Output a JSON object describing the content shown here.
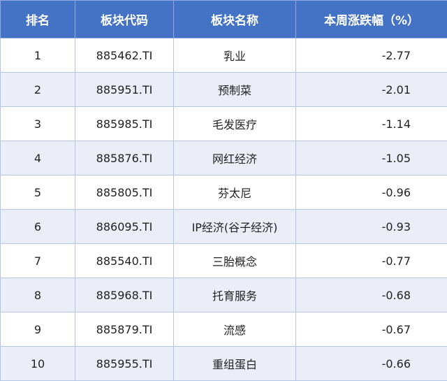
{
  "headers": [
    "排名",
    "板块代码",
    "板块名称",
    "本周涨跌幅（%）"
  ],
  "rows": [
    [
      "1",
      "885462.TI",
      "乳业",
      "-2.77"
    ],
    [
      "2",
      "885951.TI",
      "预制菜",
      "-2.01"
    ],
    [
      "3",
      "885985.TI",
      "毛发医疗",
      "-1.14"
    ],
    [
      "4",
      "885876.TI",
      "网红经济",
      "-1.05"
    ],
    [
      "5",
      "885805.TI",
      "芬太尼",
      "-0.96"
    ],
    [
      "6",
      "886095.TI",
      "IP经济(谷子经济)",
      "-0.93"
    ],
    [
      "7",
      "885540.TI",
      "三胎概念",
      "-0.77"
    ],
    [
      "8",
      "885968.TI",
      "托育服务",
      "-0.68"
    ],
    [
      "9",
      "885879.TI",
      "流感",
      "-0.67"
    ],
    [
      "10",
      "885955.TI",
      "重组蛋白",
      "-0.66"
    ]
  ],
  "colors": {
    "header": "#4472c4",
    "alt_row": "#e9eef8"
  }
}
